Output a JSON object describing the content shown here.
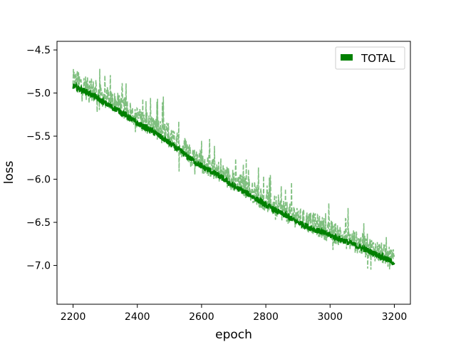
{
  "chart_data": {
    "type": "line",
    "xlabel": "epoch",
    "ylabel": "loss",
    "xlim": [
      2150,
      3250
    ],
    "ylim": [
      -7.45,
      -4.4
    ],
    "xticks": [
      2200,
      2400,
      2600,
      2800,
      3000,
      3200
    ],
    "yticks": [
      -4.5,
      -5.0,
      -5.5,
      -6.0,
      -6.5,
      -7.0
    ],
    "grid": false,
    "legend": {
      "position": "top-right",
      "entries": [
        "TOTAL"
      ]
    },
    "colors": {
      "mean_line": "#008000",
      "noisy_line": "#7fbf7f"
    },
    "series": [
      {
        "name": "TOTAL",
        "role": "smoothed",
        "style": "solid",
        "x": [
          2200,
          2250,
          2300,
          2350,
          2400,
          2450,
          2500,
          2550,
          2600,
          2650,
          2700,
          2750,
          2800,
          2850,
          2900,
          2950,
          3000,
          3050,
          3100,
          3150,
          3200
        ],
        "y": [
          -4.92,
          -5.0,
          -5.12,
          -5.22,
          -5.35,
          -5.45,
          -5.58,
          -5.72,
          -5.85,
          -5.95,
          -6.08,
          -6.18,
          -6.3,
          -6.4,
          -6.5,
          -6.58,
          -6.65,
          -6.72,
          -6.8,
          -6.88,
          -6.97
        ]
      },
      {
        "role": "raw",
        "style": "dashed",
        "noise_amplitude": 0.22,
        "x": [
          2200,
          2250,
          2300,
          2350,
          2400,
          2450,
          2500,
          2550,
          2600,
          2650,
          2700,
          2750,
          2800,
          2850,
          2900,
          2950,
          3000,
          3050,
          3100,
          3150,
          3200
        ],
        "y": [
          -4.85,
          -4.95,
          -5.05,
          -5.15,
          -5.28,
          -5.38,
          -5.52,
          -5.65,
          -5.8,
          -5.9,
          -6.02,
          -6.12,
          -6.25,
          -6.35,
          -6.45,
          -6.52,
          -6.6,
          -6.68,
          -6.76,
          -6.84,
          -6.95
        ]
      }
    ]
  }
}
